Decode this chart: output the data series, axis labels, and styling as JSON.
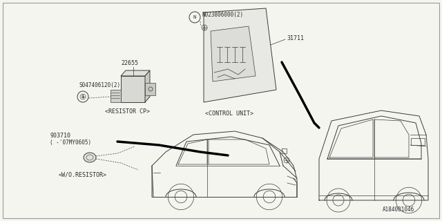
{
  "bg_color": "#f0f0f0",
  "line_color": "#3a3a3a",
  "thin_line": "#555555",
  "diagram_id": "A184001046",
  "border_color": "#aaaaaa",
  "parts": {
    "resistor_cp": {
      "label": "<RESISTOR CP>",
      "part_num": "22655",
      "screw_label": "S047406120(2)"
    },
    "control_unit": {
      "label": "<CONTROL UNIT>",
      "part_num": "31711",
      "nut_label": "N023806000(2)"
    },
    "wo_resistor": {
      "label": "<W/O.RESISTOR>",
      "part_num": "903710",
      "note": "( -’07MY0605)"
    }
  }
}
